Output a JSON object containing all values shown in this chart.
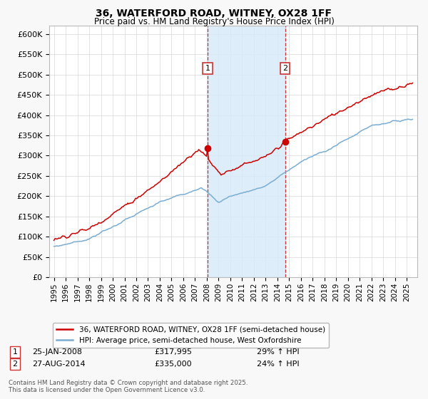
{
  "title_line1": "36, WATERFORD ROAD, WITNEY, OX28 1FF",
  "title_line2": "Price paid vs. HM Land Registry's House Price Index (HPI)",
  "legend_property": "36, WATERFORD ROAD, WITNEY, OX28 1FF (semi-detached house)",
  "legend_hpi": "HPI: Average price, semi-detached house, West Oxfordshire",
  "sale1_date": "25-JAN-2008",
  "sale1_price": "£317,995",
  "sale1_hpi": "29% ↑ HPI",
  "sale1_year": 2008.07,
  "sale1_value": 317995,
  "sale2_date": "27-AUG-2014",
  "sale2_price": "£335,000",
  "sale2_hpi": "24% ↑ HPI",
  "sale2_year": 2014.65,
  "sale2_value": 335000,
  "footer": "Contains HM Land Registry data © Crown copyright and database right 2025.\nThis data is licensed under the Open Government Licence v3.0.",
  "property_color": "#cc0000",
  "hpi_color": "#7aadd4",
  "shade_color": "#d8eaf8",
  "ylim_min": 0,
  "ylim_max": 620000,
  "yticks": [
    0,
    50000,
    100000,
    150000,
    200000,
    250000,
    300000,
    350000,
    400000,
    450000,
    500000,
    550000,
    600000
  ],
  "background_color": "#f8f8f8",
  "plot_bg_color": "#ffffff",
  "grid_color": "#d8d8d8"
}
